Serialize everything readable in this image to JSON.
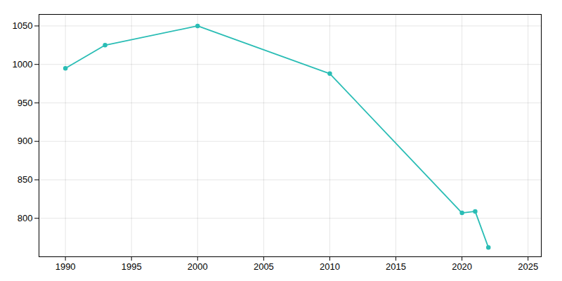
{
  "chart_data": {
    "type": "line",
    "x": [
      1990,
      1993,
      2000,
      2010,
      2020,
      2021,
      2022
    ],
    "values": [
      995,
      1025,
      1050,
      988,
      807,
      809,
      762
    ],
    "color": "#2abdb5",
    "marker": "circle",
    "xlim": [
      1988,
      2026
    ],
    "ylim": [
      750,
      1065
    ],
    "xticks": [
      1990,
      1995,
      2000,
      2005,
      2010,
      2015,
      2020,
      2025
    ],
    "yticks": [
      800,
      850,
      900,
      950,
      1000,
      1050
    ],
    "grid": true
  }
}
